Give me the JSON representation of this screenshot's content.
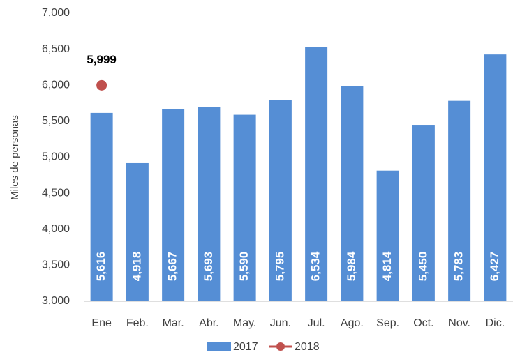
{
  "chart_data": {
    "type": "bar",
    "y_label": "Miles de personas",
    "categories": [
      "Ene",
      "Feb.",
      "Mar.",
      "Abr.",
      "May.",
      "Jun.",
      "Jul.",
      "Ago.",
      "Sep.",
      "Oct.",
      "Nov.",
      "Dic."
    ],
    "series": [
      {
        "name": "2017",
        "type": "bar",
        "color": "#558ed5",
        "values": [
          5616,
          4918,
          5667,
          5693,
          5590,
          5795,
          6534,
          5984,
          4814,
          5450,
          5783,
          6427
        ],
        "value_labels": [
          "5,616",
          "4,918",
          "5,667",
          "5,693",
          "5,590",
          "5,795",
          "6,534",
          "5,984",
          "4,814",
          "5,450",
          "5,783",
          "6,427"
        ]
      },
      {
        "name": "2018",
        "type": "line",
        "color": "#c0504d",
        "values": [
          5999,
          null,
          null,
          null,
          null,
          null,
          null,
          null,
          null,
          null,
          null,
          null
        ],
        "value_labels": [
          "5,999",
          null,
          null,
          null,
          null,
          null,
          null,
          null,
          null,
          null,
          null,
          null
        ]
      }
    ],
    "ylim": [
      3000,
      7000
    ],
    "yticks": [
      {
        "value": 3000,
        "label": "3,000"
      },
      {
        "value": 3500,
        "label": "3,500"
      },
      {
        "value": 4000,
        "label": "4,000"
      },
      {
        "value": 4500,
        "label": "4,500"
      },
      {
        "value": 5000,
        "label": "5,000"
      },
      {
        "value": 5500,
        "label": "5,500"
      },
      {
        "value": 6000,
        "label": "6,000"
      },
      {
        "value": 6500,
        "label": "6,500"
      },
      {
        "value": 7000,
        "label": "7,000"
      }
    ],
    "grid": false,
    "legend": "bottom"
  }
}
